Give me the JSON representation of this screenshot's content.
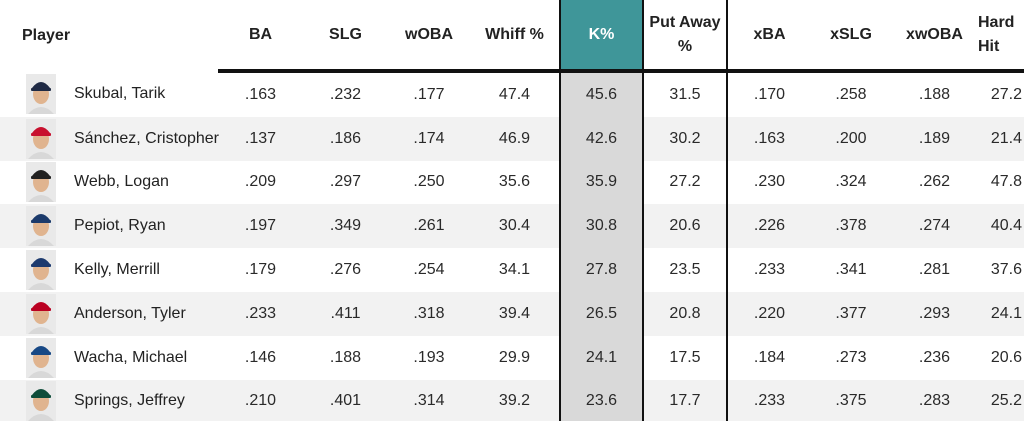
{
  "headers": {
    "player": "Player",
    "ba": "BA",
    "slg": "SLG",
    "woba": "wOBA",
    "whiff": "Whiff %",
    "k": "K%",
    "putaway_line1": "Put Away",
    "putaway_line2": "%",
    "xba": "xBA",
    "xslg": "xSLG",
    "xwoba": "xwOBA",
    "hardhit": "Hard Hit"
  },
  "colors": {
    "sorted_header": "#3f9699",
    "sorted_column": "#d9d9d9",
    "stripe": "#f2f2f2"
  },
  "rows": [
    {
      "player": "Skubal, Tarik",
      "avatar": "player-headshot-icon",
      "cap": "#1f2a44",
      "ba": ".163",
      "slg": ".232",
      "woba": ".177",
      "whiff": "47.4",
      "k": "45.6",
      "putaway": "31.5",
      "xba": ".170",
      "xslg": ".258",
      "xwoba": ".188",
      "hardhit": "27.2"
    },
    {
      "player": "Sánchez, Cristopher",
      "avatar": "player-headshot-icon",
      "cap": "#c8102e",
      "ba": ".137",
      "slg": ".186",
      "woba": ".174",
      "whiff": "46.9",
      "k": "42.6",
      "putaway": "30.2",
      "xba": ".163",
      "xslg": ".200",
      "xwoba": ".189",
      "hardhit": "21.4"
    },
    {
      "player": "Webb, Logan",
      "avatar": "player-headshot-icon",
      "cap": "#222222",
      "ba": ".209",
      "slg": ".297",
      "woba": ".250",
      "whiff": "35.6",
      "k": "35.9",
      "putaway": "27.2",
      "xba": ".230",
      "xslg": ".324",
      "xwoba": ".262",
      "hardhit": "47.8"
    },
    {
      "player": "Pepiot, Ryan",
      "avatar": "player-headshot-icon",
      "cap": "#1b3a6b",
      "ba": ".197",
      "slg": ".349",
      "woba": ".261",
      "whiff": "30.4",
      "k": "30.8",
      "putaway": "20.6",
      "xba": ".226",
      "xslg": ".378",
      "xwoba": ".274",
      "hardhit": "40.4"
    },
    {
      "player": "Kelly, Merrill",
      "avatar": "player-headshot-icon",
      "cap": "#1d3a6e",
      "ba": ".179",
      "slg": ".276",
      "woba": ".254",
      "whiff": "34.1",
      "k": "27.8",
      "putaway": "23.5",
      "xba": ".233",
      "xslg": ".341",
      "xwoba": ".281",
      "hardhit": "37.6"
    },
    {
      "player": "Anderson, Tyler",
      "avatar": "player-headshot-icon",
      "cap": "#ba0021",
      "ba": ".233",
      "slg": ".411",
      "woba": ".318",
      "whiff": "39.4",
      "k": "26.5",
      "putaway": "20.8",
      "xba": ".220",
      "xslg": ".377",
      "xwoba": ".293",
      "hardhit": "24.1"
    },
    {
      "player": "Wacha, Michael",
      "avatar": "player-headshot-icon",
      "cap": "#174885",
      "ba": ".146",
      "slg": ".188",
      "woba": ".193",
      "whiff": "29.9",
      "k": "24.1",
      "putaway": "17.5",
      "xba": ".184",
      "xslg": ".273",
      "xwoba": ".236",
      "hardhit": "20.6"
    },
    {
      "player": "Springs, Jeffrey",
      "avatar": "player-headshot-icon",
      "cap": "#0f4d3a",
      "ba": ".210",
      "slg": ".401",
      "woba": ".314",
      "whiff": "39.2",
      "k": "23.6",
      "putaway": "17.7",
      "xba": ".233",
      "xslg": ".375",
      "xwoba": ".283",
      "hardhit": "25.2"
    }
  ]
}
